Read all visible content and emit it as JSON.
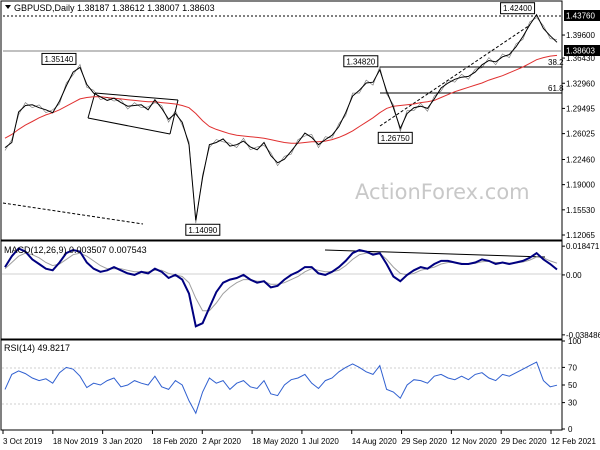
{
  "chart_data": [
    {
      "type": "line",
      "title": "GBPUSD,Daily 1.38187 1.38612 1.38007 1.38603",
      "price_axis_labels": [
        "1.43760",
        "1.39600",
        "1.36430",
        "1.32960",
        "1.29495",
        "1.26025",
        "1.22460",
        "1.19000",
        "1.15530",
        "1.12065"
      ],
      "price_values": [
        1.4376,
        1.396,
        1.3643,
        1.3296,
        1.29495,
        1.26025,
        1.2246,
        1.19,
        1.1553,
        1.12065
      ],
      "current_price_label": "1.38603",
      "ylim": [
        1.1165,
        1.4415
      ],
      "x_labels": [
        "3 Oct 2019",
        "18 Nov 2019",
        "3 Jan 2020",
        "18 Feb 2020",
        "2 Apr 2020",
        "18 May 2020",
        "1 Jul 2020",
        "14 Aug 2020",
        "29 Sep 2020",
        "12 Nov 2020",
        "29 Dec 2020",
        "12 Feb 2021"
      ],
      "annotations": [
        {
          "label": "1.35140",
          "value": 1.3514
        },
        {
          "label": "1.34820",
          "value": 1.3482
        },
        {
          "label": "1.42400",
          "value": 1.424
        },
        {
          "label": "1.26750",
          "value": 1.2675
        },
        {
          "label": "1.14090",
          "value": 1.1409
        }
      ],
      "fib_labels": [
        {
          "label": "38.2",
          "value": 1.3651
        },
        {
          "label": "61.8",
          "value": 1.3318
        }
      ],
      "series": [
        {
          "values": [
            1.241,
            1.248,
            1.29,
            1.299,
            1.3,
            1.296,
            1.293,
            1.289,
            1.305,
            1.326,
            1.345,
            1.3514,
            1.328,
            1.316,
            1.311,
            1.306,
            1.309,
            1.303,
            1.298,
            1.299,
            1.3,
            1.293,
            1.307,
            1.295,
            1.28,
            1.288,
            1.276,
            1.245,
            1.1409,
            1.2,
            1.245,
            1.248,
            1.253,
            1.243,
            1.245,
            1.25,
            1.242,
            1.238,
            1.248,
            1.23,
            1.22,
            1.225,
            1.236,
            1.248,
            1.261,
            1.255,
            1.245,
            1.252,
            1.258,
            1.27,
            1.289,
            1.312,
            1.32,
            1.33,
            1.331,
            1.3482,
            1.319,
            1.296,
            1.2675,
            1.288,
            1.296,
            1.298,
            1.295,
            1.308,
            1.323,
            1.33,
            1.335,
            1.338,
            1.339,
            1.345,
            1.355,
            1.361,
            1.359,
            1.366,
            1.369,
            1.38,
            1.394,
            1.41,
            1.424,
            1.405,
            1.395,
            1.386
          ]
        },
        {
          "values": [
            1.254,
            1.259,
            1.266,
            1.272,
            1.277,
            1.282,
            1.286,
            1.289,
            1.293,
            1.298,
            1.303,
            1.308,
            1.31,
            1.311,
            1.311,
            1.31,
            1.309,
            1.308,
            1.307,
            1.306,
            1.305,
            1.304,
            1.304,
            1.303,
            1.302,
            1.301,
            1.299,
            1.296,
            1.288,
            1.278,
            1.27,
            1.266,
            1.263,
            1.26,
            1.258,
            1.257,
            1.256,
            1.255,
            1.254,
            1.252,
            1.25,
            1.248,
            1.247,
            1.247,
            1.248,
            1.249,
            1.249,
            1.25,
            1.252,
            1.255,
            1.259,
            1.264,
            1.27,
            1.276,
            1.282,
            1.289,
            1.295,
            1.298,
            1.299,
            1.3,
            1.301,
            1.303,
            1.304,
            1.306,
            1.31,
            1.314,
            1.318,
            1.321,
            1.324,
            1.327,
            1.33,
            1.334,
            1.337,
            1.34,
            1.344,
            1.348,
            1.352,
            1.357,
            1.362,
            1.365,
            1.367,
            1.368
          ],
          "color": "#e03030"
        }
      ]
    },
    {
      "type": "line",
      "title": "MACD(12,26,9) 0.003507 0.007543",
      "axis_labels": [
        "0.018471",
        "0.00",
        "-0.038486"
      ],
      "ylim": [
        -0.0405,
        0.0205
      ],
      "series": [
        {
          "values": [
            0.005,
            0.012,
            0.017,
            0.015,
            0.01,
            0.007,
            0.004,
            0.003,
            0.008,
            0.014,
            0.016,
            0.015,
            0.008,
            0.004,
            0.002,
            0.003,
            0.005,
            0.003,
            0.001,
            0.0,
            0.002,
            0.001,
            0.004,
            0.002,
            -0.002,
            0.0,
            -0.003,
            -0.012,
            -0.033,
            -0.031,
            -0.021,
            -0.011,
            -0.005,
            -0.003,
            -0.002,
            0.0,
            -0.003,
            -0.005,
            -0.004,
            -0.008,
            -0.007,
            -0.003,
            0.0,
            0.002,
            0.005,
            0.005,
            0.001,
            0.0,
            0.002,
            0.005,
            0.009,
            0.014,
            0.016,
            0.015,
            0.013,
            0.014,
            0.007,
            -0.001,
            -0.004,
            0.0,
            0.003,
            0.005,
            0.004,
            0.007,
            0.009,
            0.009,
            0.008,
            0.007,
            0.007,
            0.008,
            0.01,
            0.009,
            0.007,
            0.008,
            0.007,
            0.008,
            0.009,
            0.011,
            0.014,
            0.01,
            0.007,
            0.0035
          ],
          "color": "#000080"
        },
        {
          "values": [
            0.004,
            0.008,
            0.012,
            0.014,
            0.013,
            0.011,
            0.008,
            0.006,
            0.007,
            0.01,
            0.013,
            0.014,
            0.012,
            0.009,
            0.006,
            0.004,
            0.004,
            0.004,
            0.003,
            0.002,
            0.002,
            0.002,
            0.003,
            0.003,
            0.001,
            0.0,
            -0.001,
            -0.005,
            -0.015,
            -0.023,
            -0.023,
            -0.018,
            -0.012,
            -0.008,
            -0.005,
            -0.003,
            -0.003,
            -0.004,
            -0.004,
            -0.006,
            -0.006,
            -0.005,
            -0.003,
            -0.001,
            0.002,
            0.004,
            0.003,
            0.002,
            0.002,
            0.003,
            0.006,
            0.01,
            0.013,
            0.014,
            0.014,
            0.014,
            0.01,
            0.005,
            0.001,
            0.0,
            0.001,
            0.003,
            0.004,
            0.005,
            0.007,
            0.008,
            0.008,
            0.0075,
            0.0072,
            0.0075,
            0.0085,
            0.0088,
            0.008,
            0.008,
            0.0075,
            0.0077,
            0.0083,
            0.0095,
            0.0115,
            0.011,
            0.009,
            0.0075
          ],
          "color": "#a0a0a0"
        }
      ]
    },
    {
      "type": "line",
      "title": "RSI(14) 49.8217",
      "axis_labels": [
        "100",
        "70",
        "50",
        "30",
        "0"
      ],
      "ylim": [
        0,
        100
      ],
      "series": [
        {
          "values": [
            45,
            62,
            66,
            63,
            58,
            55,
            57,
            52,
            64,
            70,
            68,
            60,
            47,
            52,
            50,
            55,
            58,
            48,
            50,
            55,
            52,
            50,
            60,
            48,
            45,
            55,
            50,
            32,
            18,
            42,
            58,
            52,
            55,
            45,
            52,
            55,
            48,
            46,
            55,
            40,
            38,
            50,
            56,
            58,
            62,
            52,
            46,
            55,
            58,
            65,
            70,
            74,
            70,
            65,
            62,
            72,
            45,
            42,
            35,
            50,
            56,
            55,
            52,
            60,
            62,
            58,
            56,
            60,
            56,
            62,
            64,
            58,
            55,
            62,
            60,
            64,
            68,
            72,
            76,
            55,
            48,
            49.8
          ],
          "color": "#3060d0"
        }
      ]
    }
  ],
  "watermark": "ActionForex.com"
}
